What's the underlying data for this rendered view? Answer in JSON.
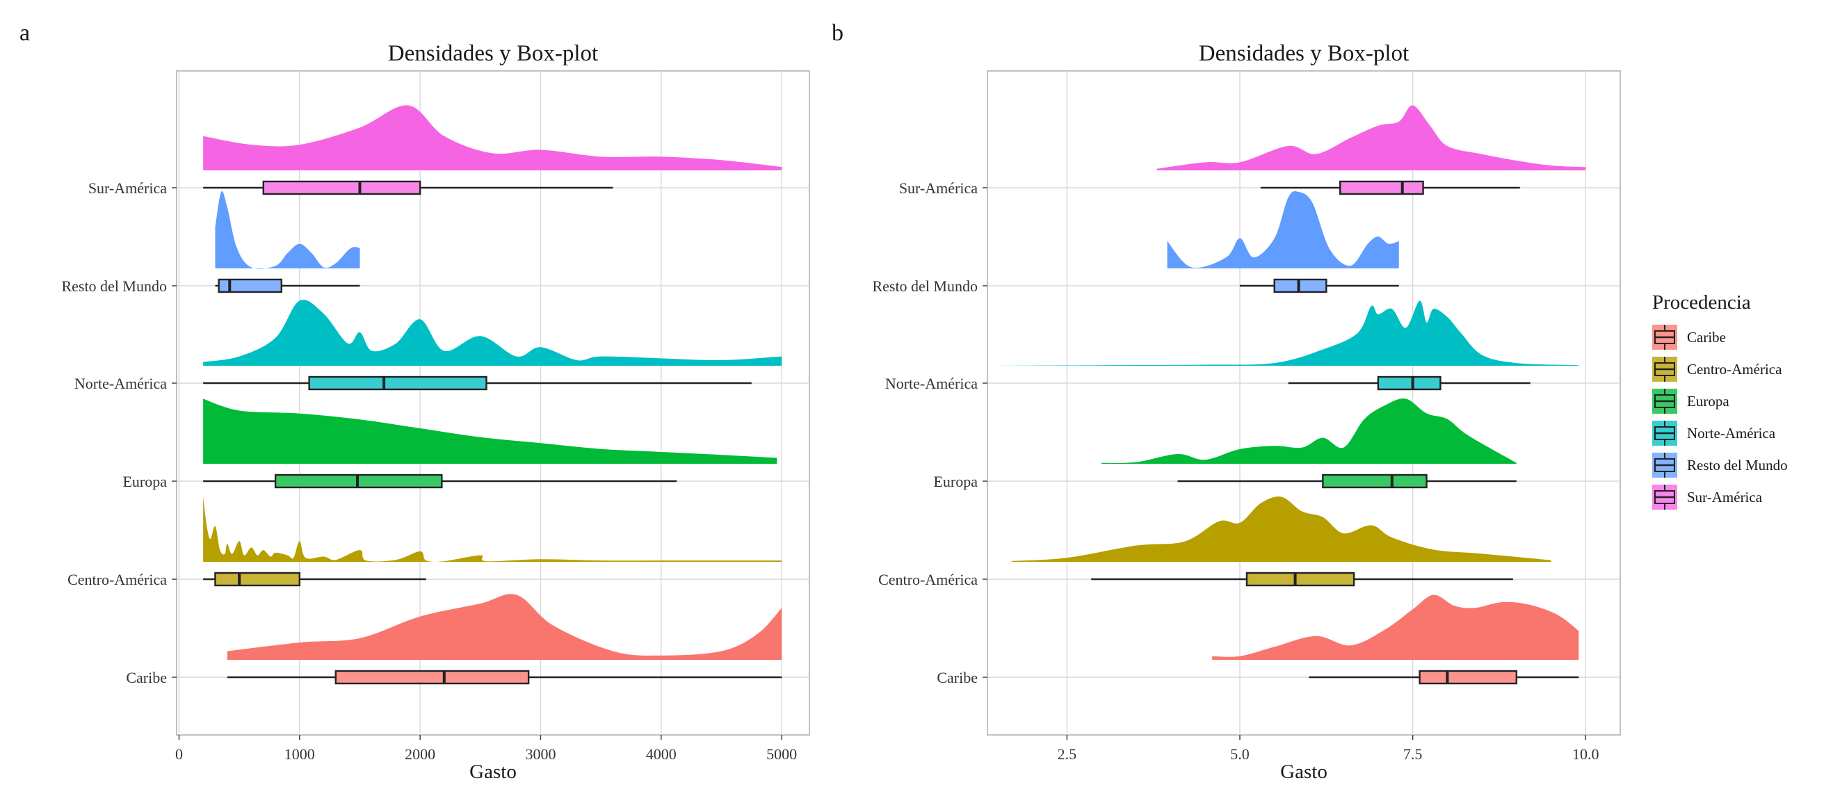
{
  "figure": {
    "panels": [
      "a",
      "b"
    ]
  },
  "legend": {
    "title": "Procedencia",
    "items": [
      {
        "label": "Caribe",
        "color": "#F8766D"
      },
      {
        "label": "Centro-América",
        "color": "#B79F00"
      },
      {
        "label": "Europa",
        "color": "#00BA38"
      },
      {
        "label": "Norte-América",
        "color": "#00BFC4"
      },
      {
        "label": "Resto del Mundo",
        "color": "#619CFF"
      },
      {
        "label": "Sur-América",
        "color": "#F564E3"
      }
    ]
  },
  "chart_data": [
    {
      "type": "density-boxplot",
      "panel": "a",
      "title": "Densidades y Box-plot",
      "xlabel": "Gasto",
      "ylabel": "",
      "xlim": [
        -20,
        5230
      ],
      "xticks": [
        0,
        1000,
        2000,
        3000,
        4000,
        5000
      ],
      "xtick_labels": [
        "0",
        "1000",
        "2000",
        "3000",
        "4000",
        "5000"
      ],
      "categories": [
        "Caribe",
        "Centro-América",
        "Europa",
        "Norte-América",
        "Resto del Mundo",
        "Sur-América"
      ],
      "grid": true,
      "series": [
        {
          "name": "Caribe",
          "color": "#F8766D",
          "box": {
            "min": 400,
            "q1": 1300,
            "median": 2200,
            "q3": 2900,
            "max": 5000
          },
          "density": [
            [
              400,
              0.02
            ],
            [
              1000,
              0.04
            ],
            [
              1500,
              0.05
            ],
            [
              2000,
              0.1
            ],
            [
              2500,
              0.13
            ],
            [
              2800,
              0.15
            ],
            [
              3100,
              0.08
            ],
            [
              3600,
              0.02
            ],
            [
              4000,
              0.01
            ],
            [
              4500,
              0.02
            ],
            [
              4800,
              0.06
            ],
            [
              5000,
              0.12
            ]
          ]
        },
        {
          "name": "Centro-América",
          "color": "#B79F00",
          "box": {
            "min": 200,
            "q1": 300,
            "median": 500,
            "q3": 1000,
            "max": 2050
          },
          "density": [
            [
              200,
              1.0
            ],
            [
              230,
              0.55
            ],
            [
              260,
              0.35
            ],
            [
              300,
              0.55
            ],
            [
              340,
              0.18
            ],
            [
              380,
              0.12
            ],
            [
              400,
              0.28
            ],
            [
              440,
              0.12
            ],
            [
              500,
              0.32
            ],
            [
              540,
              0.1
            ],
            [
              600,
              0.22
            ],
            [
              650,
              0.1
            ],
            [
              700,
              0.18
            ],
            [
              760,
              0.08
            ],
            [
              800,
              0.14
            ],
            [
              900,
              0.1
            ],
            [
              950,
              0.06
            ],
            [
              1000,
              0.32
            ],
            [
              1050,
              0.06
            ],
            [
              1200,
              0.08
            ],
            [
              1300,
              0.03
            ],
            [
              1500,
              0.18
            ],
            [
              1550,
              0.02
            ],
            [
              1800,
              0.03
            ],
            [
              2000,
              0.16
            ],
            [
              2050,
              0.02
            ],
            [
              2200,
              0.01
            ],
            [
              2500,
              0.1
            ],
            [
              2550,
              0.01
            ],
            [
              3000,
              0.04
            ],
            [
              3500,
              0.02
            ],
            [
              4000,
              0.02
            ],
            [
              4500,
              0.02
            ],
            [
              5000,
              0.02
            ]
          ]
        },
        {
          "name": "Europa",
          "color": "#00BA38",
          "box": {
            "min": 200,
            "q1": 800,
            "median": 1480,
            "q3": 2180,
            "max": 4130
          },
          "density": [
            [
              200,
              0.22
            ],
            [
              500,
              0.18
            ],
            [
              1000,
              0.17
            ],
            [
              1500,
              0.15
            ],
            [
              2000,
              0.12
            ],
            [
              2500,
              0.09
            ],
            [
              3000,
              0.07
            ],
            [
              3500,
              0.05
            ],
            [
              4000,
              0.04
            ],
            [
              4500,
              0.03
            ],
            [
              4960,
              0.02
            ]
          ]
        },
        {
          "name": "Norte-América",
          "color": "#00BFC4",
          "box": {
            "min": 200,
            "q1": 1080,
            "median": 1700,
            "q3": 2550,
            "max": 4750
          },
          "density": [
            [
              200,
              0.02
            ],
            [
              500,
              0.05
            ],
            [
              800,
              0.15
            ],
            [
              1000,
              0.35
            ],
            [
              1200,
              0.28
            ],
            [
              1400,
              0.12
            ],
            [
              1500,
              0.18
            ],
            [
              1600,
              0.08
            ],
            [
              1800,
              0.12
            ],
            [
              2000,
              0.25
            ],
            [
              2200,
              0.08
            ],
            [
              2500,
              0.16
            ],
            [
              2800,
              0.05
            ],
            [
              3000,
              0.1
            ],
            [
              3300,
              0.03
            ],
            [
              3500,
              0.05
            ],
            [
              4000,
              0.04
            ],
            [
              4500,
              0.03
            ],
            [
              5000,
              0.05
            ]
          ]
        },
        {
          "name": "Resto del Mundo",
          "color": "#619CFF",
          "box": {
            "min": 300,
            "q1": 330,
            "median": 420,
            "q3": 850,
            "max": 1500
          },
          "density": [
            [
              300,
              0.8
            ],
            [
              350,
              1.5
            ],
            [
              400,
              1.2
            ],
            [
              480,
              0.4
            ],
            [
              600,
              0.02
            ],
            [
              800,
              0.05
            ],
            [
              900,
              0.3
            ],
            [
              1000,
              0.48
            ],
            [
              1100,
              0.3
            ],
            [
              1200,
              0.02
            ],
            [
              1300,
              0.1
            ],
            [
              1400,
              0.35
            ],
            [
              1450,
              0.42
            ],
            [
              1500,
              0.4
            ]
          ]
        },
        {
          "name": "Sur-América",
          "color": "#F564E3",
          "box": {
            "min": 200,
            "q1": 700,
            "median": 1500,
            "q3": 2000,
            "max": 3600
          },
          "density": [
            [
              200,
              0.2
            ],
            [
              600,
              0.15
            ],
            [
              1000,
              0.15
            ],
            [
              1500,
              0.25
            ],
            [
              1900,
              0.38
            ],
            [
              2200,
              0.2
            ],
            [
              2600,
              0.1
            ],
            [
              3000,
              0.12
            ],
            [
              3500,
              0.08
            ],
            [
              4000,
              0.08
            ],
            [
              4500,
              0.06
            ],
            [
              5000,
              0.02
            ]
          ]
        }
      ]
    },
    {
      "type": "density-boxplot",
      "panel": "b",
      "title": "Densidades y Box-plot",
      "xlabel": "Gasto",
      "ylabel": "",
      "xlim": [
        1.35,
        10.5
      ],
      "xticks": [
        2.5,
        5.0,
        7.5,
        10.0
      ],
      "xtick_labels": [
        "2.5",
        "5.0",
        "7.5",
        "10.0"
      ],
      "categories": [
        "Caribe",
        "Centro-América",
        "Europa",
        "Norte-América",
        "Resto del Mundo",
        "Sur-América"
      ],
      "grid": true,
      "series": [
        {
          "name": "Caribe",
          "color": "#F8766D",
          "box": {
            "min": 6.0,
            "q1": 7.6,
            "median": 8.0,
            "q3": 9.0,
            "max": 9.9
          },
          "density": [
            [
              4.6,
              0.05
            ],
            [
              5.0,
              0.05
            ],
            [
              5.5,
              0.18
            ],
            [
              6.1,
              0.33
            ],
            [
              6.6,
              0.2
            ],
            [
              7.1,
              0.42
            ],
            [
              7.5,
              0.7
            ],
            [
              7.8,
              0.9
            ],
            [
              8.1,
              0.75
            ],
            [
              8.4,
              0.72
            ],
            [
              8.8,
              0.8
            ],
            [
              9.2,
              0.76
            ],
            [
              9.6,
              0.62
            ],
            [
              9.9,
              0.4
            ]
          ]
        },
        {
          "name": "Centro-América",
          "color": "#B79F00",
          "box": {
            "min": 2.85,
            "q1": 5.1,
            "median": 5.8,
            "q3": 6.65,
            "max": 8.95
          },
          "density": [
            [
              1.7,
              0.01
            ],
            [
              2.5,
              0.05
            ],
            [
              3.5,
              0.2
            ],
            [
              4.2,
              0.25
            ],
            [
              4.7,
              0.5
            ],
            [
              5.0,
              0.48
            ],
            [
              5.3,
              0.72
            ],
            [
              5.6,
              0.8
            ],
            [
              5.9,
              0.62
            ],
            [
              6.2,
              0.55
            ],
            [
              6.5,
              0.35
            ],
            [
              6.9,
              0.45
            ],
            [
              7.2,
              0.3
            ],
            [
              7.8,
              0.15
            ],
            [
              8.5,
              0.1
            ],
            [
              9.5,
              0.02
            ]
          ]
        },
        {
          "name": "Europa",
          "color": "#00BA38",
          "box": {
            "min": 4.1,
            "q1": 6.2,
            "median": 7.2,
            "q3": 7.7,
            "max": 9.0
          },
          "density": [
            [
              3.0,
              0.01
            ],
            [
              3.5,
              0.02
            ],
            [
              4.1,
              0.12
            ],
            [
              4.5,
              0.05
            ],
            [
              5.0,
              0.18
            ],
            [
              5.5,
              0.22
            ],
            [
              5.9,
              0.2
            ],
            [
              6.2,
              0.32
            ],
            [
              6.5,
              0.2
            ],
            [
              6.8,
              0.55
            ],
            [
              7.1,
              0.72
            ],
            [
              7.4,
              0.8
            ],
            [
              7.7,
              0.62
            ],
            [
              8.0,
              0.55
            ],
            [
              8.3,
              0.35
            ],
            [
              9.0,
              0.01
            ]
          ]
        },
        {
          "name": "Norte-America",
          "color": "#00BFC4",
          "box": {
            "min": 5.7,
            "q1": 7.0,
            "median": 7.5,
            "q3": 7.9,
            "max": 9.2
          },
          "density": [
            [
              1.5,
              0.0
            ],
            [
              3.0,
              0.01
            ],
            [
              4.5,
              0.02
            ],
            [
              5.5,
              0.05
            ],
            [
              6.2,
              0.3
            ],
            [
              6.7,
              0.6
            ],
            [
              6.9,
              1.1
            ],
            [
              7.0,
              0.95
            ],
            [
              7.2,
              1.05
            ],
            [
              7.4,
              0.7
            ],
            [
              7.6,
              1.2
            ],
            [
              7.7,
              0.8
            ],
            [
              7.8,
              1.05
            ],
            [
              8.0,
              0.9
            ],
            [
              8.2,
              0.6
            ],
            [
              8.5,
              0.2
            ],
            [
              9.0,
              0.05
            ],
            [
              9.9,
              0.01
            ]
          ]
        },
        {
          "name": "Resto del Mundo",
          "color": "#619CFF",
          "box": {
            "min": 5.0,
            "q1": 5.5,
            "median": 5.85,
            "q3": 6.25,
            "max": 7.3
          },
          "density": [
            [
              3.95,
              0.5
            ],
            [
              4.3,
              0.02
            ],
            [
              4.8,
              0.2
            ],
            [
              5.0,
              0.55
            ],
            [
              5.2,
              0.2
            ],
            [
              5.5,
              0.55
            ],
            [
              5.7,
              1.3
            ],
            [
              5.85,
              1.4
            ],
            [
              6.05,
              1.2
            ],
            [
              6.3,
              0.35
            ],
            [
              6.6,
              0.05
            ],
            [
              6.85,
              0.45
            ],
            [
              7.0,
              0.58
            ],
            [
              7.15,
              0.45
            ],
            [
              7.3,
              0.5
            ]
          ]
        },
        {
          "name": "Sur-America",
          "color": "#F564E3",
          "box": {
            "min": 5.3,
            "q1": 6.45,
            "median": 7.35,
            "q3": 7.65,
            "max": 9.05
          },
          "density": [
            [
              3.8,
              0.02
            ],
            [
              4.5,
              0.1
            ],
            [
              5.0,
              0.1
            ],
            [
              5.7,
              0.3
            ],
            [
              6.1,
              0.2
            ],
            [
              6.6,
              0.4
            ],
            [
              7.0,
              0.55
            ],
            [
              7.3,
              0.6
            ],
            [
              7.5,
              0.8
            ],
            [
              7.75,
              0.55
            ],
            [
              8.0,
              0.3
            ],
            [
              8.5,
              0.2
            ],
            [
              9.0,
              0.12
            ],
            [
              9.5,
              0.06
            ],
            [
              10.0,
              0.04
            ]
          ]
        }
      ]
    }
  ]
}
